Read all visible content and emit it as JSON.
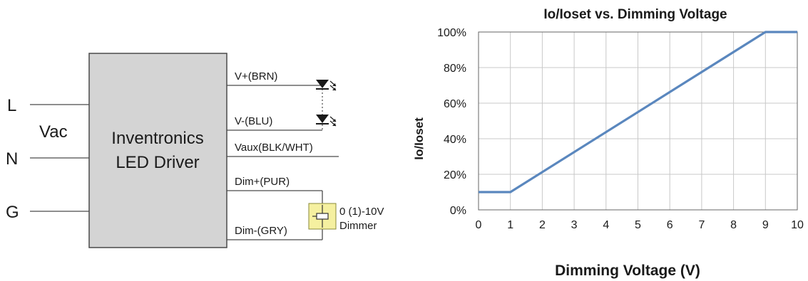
{
  "diagram": {
    "inputs": {
      "line": "L",
      "neutral": "N",
      "ground": "G",
      "supply": "Vac"
    },
    "driver": {
      "line1": "Inventronics",
      "line2": "LED Driver",
      "fill_color": "#d4d4d4"
    },
    "wires": {
      "v_plus": "V+(BRN)",
      "v_minus": "V-(BLU)",
      "vaux": "Vaux(BLK/WHT)",
      "dim_plus": "Dim+(PUR)",
      "dim_minus": "Dim-(GRY)"
    },
    "dimmer": {
      "line1": "0 (1)-10V",
      "line2": "Dimmer",
      "fill_color": "#f5f0a0"
    }
  },
  "chart_data": {
    "type": "line",
    "title": "Io/Ioset vs. Dimming Voltage",
    "xlabel": "Dimming Voltage (V)",
    "ylabel": "Io/Ioset",
    "xlim": [
      0,
      10
    ],
    "ylim": [
      0,
      100
    ],
    "x_ticks": [
      "0",
      "1",
      "2",
      "3",
      "4",
      "5",
      "6",
      "7",
      "8",
      "9",
      "10"
    ],
    "y_ticks": [
      "0%",
      "20%",
      "40%",
      "60%",
      "80%",
      "100%"
    ],
    "grid": true,
    "legend": "none",
    "series": [
      {
        "color": "#5a87be",
        "points": [
          [
            0,
            10
          ],
          [
            1,
            10
          ],
          [
            9,
            100
          ],
          [
            10,
            100
          ]
        ]
      }
    ]
  }
}
